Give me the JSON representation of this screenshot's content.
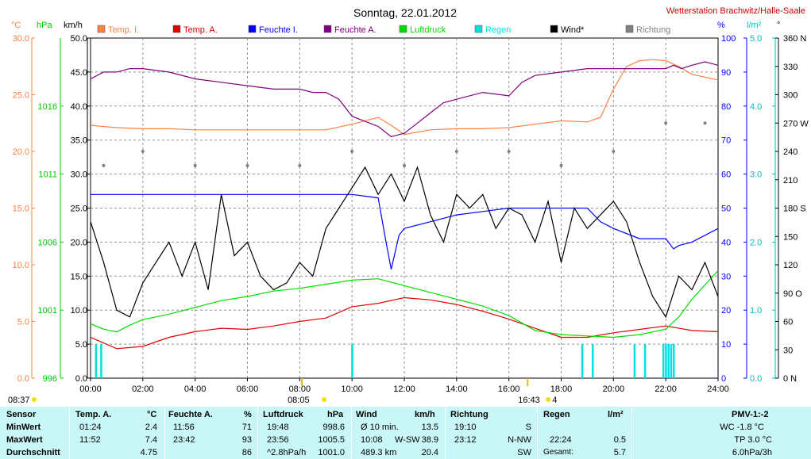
{
  "title": "Sonntag, 22.01.2012",
  "station": "Wetterstation Brachwitz/Halle-Saale",
  "axis_units": {
    "temp": "°C",
    "pressure": "hPa",
    "wind": "km/h",
    "humidity": "%",
    "rain": "l/m²",
    "direction": "°"
  },
  "colors": {
    "temp_in": "#ff8040",
    "temp_out": "#e00000",
    "hum_in": "#0000ff",
    "hum_out": "#800080",
    "pressure": "#00dd00",
    "rain": "#00e0e0",
    "wind": "#000000",
    "direction": "#808080",
    "temp_axis": "#ff8040",
    "pressure_axis": "#00cc00",
    "humidity_axis": "#0000ff",
    "rain_axis": "#00c0c0"
  },
  "legend": [
    {
      "label": "Temp. I.",
      "color": "#ff8040"
    },
    {
      "label": "Temp. A.",
      "color": "#e00000"
    },
    {
      "label": "Feuchte I.",
      "color": "#0000ff"
    },
    {
      "label": "Feuchte A.",
      "color": "#800080"
    },
    {
      "label": "Luftdruck",
      "color": "#00dd00"
    },
    {
      "label": "Regen",
      "color": "#00e0e0"
    },
    {
      "label": "Wind*",
      "color": "#000000"
    },
    {
      "label": "Richtung",
      "color": "#808080"
    }
  ],
  "chart_data": {
    "type": "line",
    "title": "Sonntag, 22.01.2012",
    "x_ticks": [
      "00:00",
      "02:00",
      "04:00",
      "06:00",
      "08:00",
      "10:00",
      "12:00",
      "14:00",
      "16:00",
      "18:00",
      "20:00",
      "22:00",
      "24:00"
    ],
    "xlim": [
      0,
      24
    ],
    "axes": {
      "temp": {
        "ticks": [
          "0.0",
          "5.0",
          "10.0",
          "15.0",
          "20.0",
          "25.0",
          "30.0"
        ],
        "ylim": [
          0,
          30
        ]
      },
      "pressure": {
        "ticks": [
          "996",
          "1001",
          "1006",
          "1011",
          "1016"
        ],
        "ylim": [
          996,
          1021
        ]
      },
      "wind": {
        "ticks": [
          "0.0",
          "5.0",
          "10.0",
          "15.0",
          "20.0",
          "25.0",
          "30.0",
          "35.0",
          "40.0",
          "45.0",
          "50.0"
        ],
        "ylim": [
          0,
          50
        ]
      },
      "humidity": {
        "ticks": [
          "0",
          "10",
          "20",
          "30",
          "40",
          "50",
          "60",
          "70",
          "80",
          "90",
          "100"
        ],
        "ylim": [
          0,
          100
        ]
      },
      "rain": {
        "ticks": [
          "0.0",
          "1.0",
          "2.0",
          "3.0",
          "4.0",
          "5.0"
        ],
        "ylim": [
          0,
          5
        ]
      },
      "direction": {
        "ticks": [
          "0 N",
          "30",
          "60",
          "90 O",
          "120",
          "150",
          "180 S",
          "210",
          "240",
          "270 W",
          "300",
          "330",
          "360 N"
        ],
        "ylim": [
          0,
          360
        ]
      }
    },
    "series": [
      {
        "name": "Temp. I.",
        "axis": "temp",
        "x": [
          0,
          1,
          2,
          3,
          4,
          5,
          6,
          7,
          8,
          9,
          10,
          11,
          11.5,
          12,
          13,
          14,
          15,
          16,
          17,
          18,
          19,
          19.5,
          20,
          20.5,
          21,
          21.5,
          22,
          22.5,
          23,
          24
        ],
        "y": [
          22.3,
          22.1,
          22.0,
          22.0,
          21.9,
          21.9,
          21.9,
          21.9,
          21.9,
          21.9,
          22.4,
          23.0,
          22.3,
          21.5,
          21.9,
          22.0,
          22.0,
          22.1,
          22.4,
          22.7,
          22.6,
          23.0,
          25.5,
          27.5,
          28.0,
          28.1,
          28.0,
          27.5,
          26.8,
          26.3
        ]
      },
      {
        "name": "Temp. A.",
        "axis": "temp",
        "x": [
          0,
          1,
          2,
          3,
          4,
          5,
          6,
          7,
          8,
          9,
          10,
          11,
          12,
          13,
          14,
          15,
          16,
          17,
          18,
          19,
          20,
          21,
          22,
          23,
          24
        ],
        "y": [
          3.6,
          2.6,
          2.8,
          3.6,
          4.1,
          4.4,
          4.3,
          4.6,
          5.0,
          5.3,
          6.3,
          6.6,
          7.1,
          6.9,
          6.5,
          5.9,
          5.2,
          4.4,
          3.6,
          3.6,
          4.0,
          4.3,
          4.6,
          4.2,
          4.1
        ]
      },
      {
        "name": "Feuchte I.",
        "axis": "humidity",
        "x": [
          0,
          0.5,
          1,
          2,
          4,
          6,
          8,
          10,
          11,
          11.3,
          11.5,
          11.8,
          12,
          13,
          14,
          15,
          16,
          17,
          18,
          19,
          19.5,
          20,
          21,
          21.5,
          22,
          22.3,
          22.5,
          23,
          24
        ],
        "y": [
          54,
          54,
          54,
          54,
          54,
          54,
          54,
          54,
          53,
          40,
          32,
          42,
          44,
          46,
          48,
          49,
          50,
          50,
          50,
          50,
          46,
          44,
          41,
          41,
          41,
          38,
          39,
          40,
          44
        ]
      },
      {
        "name": "Feuchte A.",
        "axis": "humidity",
        "x": [
          0,
          0.5,
          1,
          1.5,
          2,
          3,
          4,
          5,
          6,
          7,
          8,
          8.5,
          9,
          9.5,
          10,
          11,
          11.5,
          12,
          12.5,
          13,
          13.5,
          14,
          15,
          16,
          16.5,
          17,
          18,
          19,
          20,
          21,
          22,
          22.3,
          22.6,
          23,
          23.5,
          24
        ],
        "y": [
          88,
          90,
          90,
          91,
          91,
          90,
          88,
          87,
          86,
          85,
          85,
          84,
          84,
          82,
          77,
          74,
          71,
          72,
          75,
          78,
          81,
          82,
          84,
          83,
          87,
          89,
          90,
          91,
          91,
          91,
          91,
          92,
          91,
          92,
          93,
          92
        ]
      },
      {
        "name": "Luftdruck",
        "axis": "pressure",
        "x": [
          0,
          0.5,
          1,
          1.5,
          2,
          3,
          4,
          5,
          6,
          7,
          8,
          9,
          10,
          11,
          12,
          13,
          14,
          15,
          16,
          17,
          18,
          19,
          20,
          21,
          22,
          22.5,
          23,
          24
        ],
        "y": [
          1000.0,
          999.6,
          999.4,
          999.9,
          1000.3,
          1000.7,
          1001.2,
          1001.7,
          1002.0,
          1002.4,
          1002.6,
          1002.9,
          1003.2,
          1003.3,
          1002.8,
          1002.3,
          1001.8,
          1001.3,
          1000.6,
          999.5,
          999.2,
          999.1,
          999.0,
          999.2,
          999.6,
          1000.5,
          1001.8,
          1003.9
        ]
      },
      {
        "name": "Regen",
        "axis": "rain",
        "x": [
          0.2,
          0.4,
          10.0,
          18.8,
          19.2,
          20.8,
          21.2,
          21.9,
          22.0,
          22.1,
          22.2,
          22.3
        ],
        "y": [
          0.5,
          0.5,
          0.5,
          0.5,
          0.5,
          0.5,
          0.5,
          0.5,
          0.5,
          0.5,
          0.5,
          0.5
        ]
      },
      {
        "name": "Wind*",
        "axis": "wind",
        "x": [
          0,
          0.5,
          1,
          1.5,
          2,
          2.5,
          3,
          3.5,
          4,
          4.5,
          5,
          5.5,
          6,
          6.5,
          7,
          7.5,
          8,
          8.5,
          9,
          9.5,
          10,
          10.5,
          11,
          11.5,
          12,
          12.5,
          13,
          13.5,
          14,
          14.5,
          15,
          15.5,
          16,
          16.5,
          17,
          17.5,
          18,
          18.5,
          19,
          19.5,
          20,
          20.5,
          21,
          21.5,
          22,
          22.5,
          23,
          23.5,
          24
        ],
        "y": [
          23,
          17,
          10,
          9,
          14,
          17,
          20,
          15,
          20,
          13,
          27,
          18,
          20,
          15,
          13,
          14,
          17,
          15,
          22,
          25,
          28,
          31,
          27,
          30,
          26,
          31,
          24,
          20,
          27,
          25,
          27,
          22,
          25,
          24,
          20,
          26,
          17,
          25,
          22,
          24,
          26,
          23,
          17,
          12,
          9,
          15,
          13,
          17,
          12
        ]
      },
      {
        "name": "Richtung",
        "axis": "direction",
        "x": [
          0.5,
          2,
          4,
          6,
          8,
          10,
          12,
          14,
          16,
          18,
          20,
          22,
          23.5
        ],
        "y": [
          225,
          240,
          225,
          225,
          225,
          240,
          225,
          240,
          240,
          225,
          240,
          270,
          270
        ]
      }
    ],
    "annotations": {
      "sunrise": "08:05",
      "sunset": "16:43",
      "max_marker": "4",
      "first_time": "08:37"
    }
  },
  "table": {
    "col_sensor": {
      "head": "Sensor",
      "rows": [
        "MinWert",
        "MaxWert",
        "Durchschnitt"
      ]
    },
    "col_temp": {
      "head": "Temp. A.",
      "unit": "°C",
      "rows": [
        [
          "01:24",
          "2.4"
        ],
        [
          "11:52",
          "7.4"
        ],
        [
          "",
          "4.75"
        ]
      ]
    },
    "col_hum": {
      "head": "Feuchte A.",
      "unit": "%",
      "rows": [
        [
          "11:56",
          "71"
        ],
        [
          "23:42",
          "93"
        ],
        [
          "",
          "86"
        ]
      ]
    },
    "col_press": {
      "head": "Luftdruck",
      "unit": "hPa",
      "rows": [
        [
          "19:48",
          "998.6"
        ],
        [
          "23:56",
          "1005.5"
        ],
        [
          "^2.8hPa/h",
          "1001.0"
        ]
      ]
    },
    "col_wind": {
      "head": "Wind",
      "unit": "km/h",
      "rows": [
        [
          "Ø 10 min.",
          "",
          "13.5"
        ],
        [
          "10:08",
          "W-SW",
          "38.9"
        ],
        [
          "489.3 km",
          "",
          "20.4"
        ]
      ]
    },
    "col_dir": {
      "head": "Richtung",
      "rows": [
        [
          "19:10",
          "S"
        ],
        [
          "23:12",
          "N-NW"
        ],
        [
          "",
          "SW"
        ]
      ]
    },
    "col_rain": {
      "head": "Regen",
      "unit": "l/m²",
      "rows": [
        [
          "",
          ""
        ],
        [
          "22:24",
          "0.5"
        ],
        [
          "Gesamt:",
          "5.7"
        ]
      ]
    },
    "col_pmv": {
      "head": "PMV-1:-2",
      "rows": [
        "WC -1.8 °C",
        "TP 3.0 °C",
        "6.0hPa/3h"
      ]
    }
  }
}
